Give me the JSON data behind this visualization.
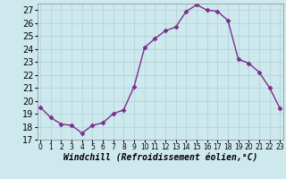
{
  "x": [
    0,
    1,
    2,
    3,
    4,
    5,
    6,
    7,
    8,
    9,
    10,
    11,
    12,
    13,
    14,
    15,
    16,
    17,
    18,
    19,
    20,
    21,
    22,
    23
  ],
  "y": [
    19.5,
    18.7,
    18.2,
    18.1,
    17.5,
    18.1,
    18.3,
    19.0,
    19.3,
    21.1,
    24.1,
    24.8,
    25.4,
    25.7,
    26.9,
    27.4,
    27.0,
    26.9,
    26.2,
    23.2,
    22.9,
    22.2,
    21.0,
    19.4
  ],
  "line_color": "#7B2D8B",
  "marker": "D",
  "marker_size": 2.5,
  "bg_color": "#cee9ee",
  "grid_color": "#b8d8de",
  "xlabel": "Windchill (Refroidissement éolien,°C)",
  "ylim": [
    17,
    27.5
  ],
  "xlim": [
    -0.3,
    23.3
  ],
  "yticks": [
    17,
    18,
    19,
    20,
    21,
    22,
    23,
    24,
    25,
    26,
    27
  ],
  "xticks": [
    0,
    1,
    2,
    3,
    4,
    5,
    6,
    7,
    8,
    9,
    10,
    11,
    12,
    13,
    14,
    15,
    16,
    17,
    18,
    19,
    20,
    21,
    22,
    23
  ],
  "xlabel_fontsize": 7,
  "ytick_fontsize": 7,
  "xtick_fontsize": 5.5,
  "line_width": 1.0
}
